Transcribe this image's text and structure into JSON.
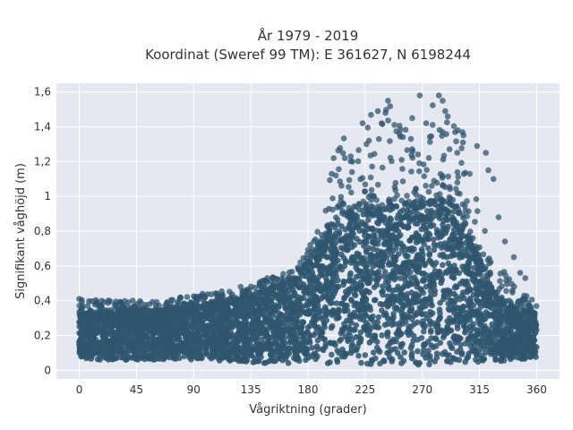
{
  "chart_data": {
    "type": "scatter",
    "title_line1": "År 1979 - 2019",
    "title_line2": "Koordinat (Sweref 99 TM): E 361627, N 6198244",
    "xlabel": "Vågriktning (grader)",
    "ylabel": "Signifikant våghöjd (m)",
    "xlim": [
      -18,
      378
    ],
    "ylim": [
      -0.05,
      1.65
    ],
    "xticks": [
      0,
      45,
      90,
      135,
      180,
      225,
      270,
      315,
      360
    ],
    "xtick_labels": [
      "0",
      "45",
      "90",
      "135",
      "180",
      "225",
      "270",
      "315",
      "360"
    ],
    "yticks": [
      0,
      0.2,
      0.4,
      0.6,
      0.8,
      1.0,
      1.2,
      1.4,
      1.6
    ],
    "ytick_labels": [
      "0",
      "0,2",
      "0,4",
      "0,6",
      "0,8",
      "1",
      "1,2",
      "1,4",
      "1,6"
    ],
    "grid": true,
    "marker_color": "#2f566e",
    "plot_background": "#e5e8f0",
    "envelope": {
      "direction": [
        0,
        30,
        60,
        90,
        120,
        150,
        170,
        190,
        200,
        210,
        225,
        240,
        255,
        270,
        285,
        300,
        315,
        330,
        345,
        360
      ],
      "lower_hs": [
        0.06,
        0.06,
        0.06,
        0.06,
        0.05,
        0.04,
        0.04,
        0.03,
        0.03,
        0.03,
        0.03,
        0.03,
        0.03,
        0.03,
        0.03,
        0.03,
        0.04,
        0.05,
        0.06,
        0.07
      ],
      "dense_upper_hs": [
        0.32,
        0.33,
        0.34,
        0.36,
        0.4,
        0.46,
        0.52,
        0.72,
        0.85,
        0.9,
        0.92,
        0.93,
        0.95,
        0.97,
        0.98,
        0.92,
        0.62,
        0.4,
        0.34,
        0.33
      ],
      "max_hs": [
        0.41,
        0.4,
        0.4,
        0.43,
        0.47,
        0.53,
        0.58,
        0.85,
        1.22,
        1.38,
        1.45,
        1.55,
        1.52,
        1.58,
        1.58,
        1.42,
        1.0,
        0.63,
        0.45,
        0.41
      ]
    },
    "extreme_points": [
      {
        "x": 268,
        "y": 1.58
      },
      {
        "x": 283,
        "y": 1.58
      },
      {
        "x": 243,
        "y": 1.55
      },
      {
        "x": 286,
        "y": 1.55
      },
      {
        "x": 288,
        "y": 1.49
      },
      {
        "x": 290,
        "y": 1.46
      },
      {
        "x": 262,
        "y": 1.45
      },
      {
        "x": 241,
        "y": 1.48
      },
      {
        "x": 238,
        "y": 1.42
      },
      {
        "x": 223,
        "y": 1.42
      },
      {
        "x": 273,
        "y": 1.42
      },
      {
        "x": 298,
        "y": 1.38
      },
      {
        "x": 286,
        "y": 1.37
      },
      {
        "x": 252,
        "y": 1.36
      },
      {
        "x": 228,
        "y": 1.32
      },
      {
        "x": 226,
        "y": 1.3
      },
      {
        "x": 261,
        "y": 1.33
      },
      {
        "x": 302,
        "y": 1.31
      },
      {
        "x": 313,
        "y": 1.29
      },
      {
        "x": 320,
        "y": 1.25
      },
      {
        "x": 209,
        "y": 1.22
      },
      {
        "x": 215,
        "y": 1.2
      },
      {
        "x": 202,
        "y": 1.12
      },
      {
        "x": 326,
        "y": 1.1
      },
      {
        "x": 322,
        "y": 1.15
      },
      {
        "x": 330,
        "y": 0.88
      },
      {
        "x": 335,
        "y": 0.74
      },
      {
        "x": 342,
        "y": 0.65
      },
      {
        "x": 347,
        "y": 0.56
      },
      {
        "x": 351,
        "y": 0.53
      },
      {
        "x": 174,
        "y": 0.62
      },
      {
        "x": 148,
        "y": 0.53
      },
      {
        "x": 127,
        "y": 0.48
      },
      {
        "x": 97,
        "y": 0.44
      },
      {
        "x": 42,
        "y": 0.4
      },
      {
        "x": 0,
        "y": 0.41
      }
    ]
  }
}
